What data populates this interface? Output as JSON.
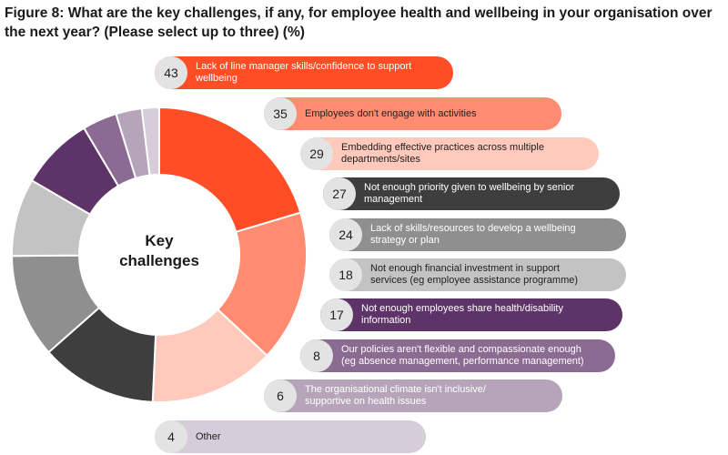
{
  "chart_data": {
    "type": "donut",
    "title": "Figure 8: What are the key challenges, if any, for employee health and wellbeing in your organisation over the next year? (Please select up to three) (%)",
    "center_label": [
      "Key",
      "challenges"
    ],
    "unit": "%",
    "categories": [
      "Lack of line manager skills/confidence to support wellbeing",
      "Employees don't engage with activities",
      "Embedding effective practices across multiple departments/sites",
      "Not enough priority given to wellbeing by senior management",
      "Lack of skills/resources to develop a wellbeing strategy or plan",
      "Not enough financial investment in support services (eg employee assistance programme)",
      "Not enough employees share health/disability information",
      "Our policies aren't flexible and compassionate enough (eg absence management, performance management)",
      "The organisational climate isn't inclusive/ supportive on health issues",
      "Other"
    ],
    "labels_display": [
      [
        "Lack of line manager skills/confidence to support",
        "wellbeing"
      ],
      [
        "Employees don't engage with activities"
      ],
      [
        "Embedding effective practices across multiple",
        "departments/sites"
      ],
      [
        "Not enough priority given to wellbeing by senior",
        "management"
      ],
      [
        "Lack of skills/resources to develop a wellbeing",
        "strategy or plan"
      ],
      [
        "Not enough financial investment in support",
        "services (eg employee assistance programme)"
      ],
      [
        "Not enough employees share health/disability",
        "information"
      ],
      [
        "Our policies aren't flexible and compassionate enough",
        "(eg absence management, performance management)"
      ],
      [
        "The organisational climate isn't inclusive/",
        "supportive on health issues"
      ],
      [
        "Other"
      ]
    ],
    "values": [
      43,
      35,
      29,
      27,
      24,
      18,
      17,
      8,
      6,
      4
    ],
    "colors": [
      "#ff4d26",
      "#ff8c70",
      "#ffc9bc",
      "#3e3e3e",
      "#8f8f8f",
      "#c3c3c3",
      "#5e3468",
      "#8c6b93",
      "#b6a5ba",
      "#d7ccd9"
    ]
  }
}
